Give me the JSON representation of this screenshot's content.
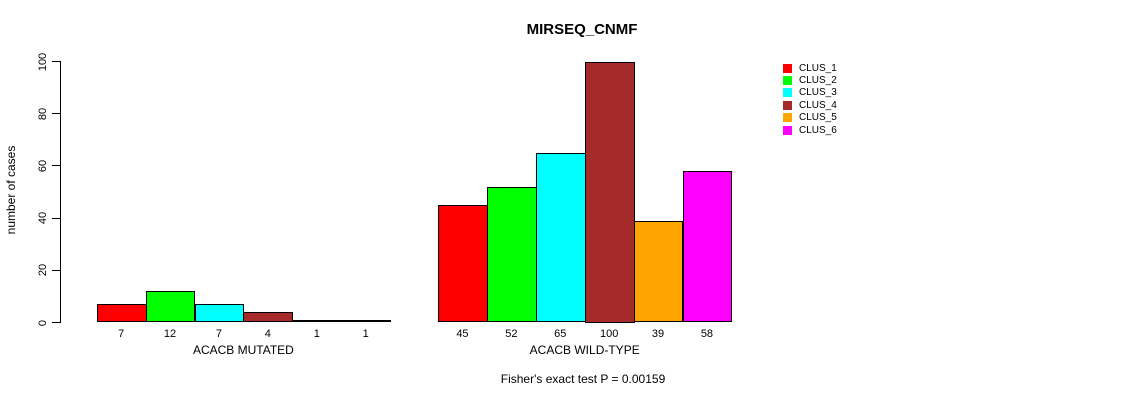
{
  "chart_data": {
    "type": "bar",
    "title": "MIRSEQ_CNMF",
    "ylabel": "number of cases",
    "ylim": [
      0,
      100
    ],
    "yticks": [
      0,
      20,
      40,
      60,
      80,
      100
    ],
    "grid": false,
    "legend_position": "right",
    "footnote": "Fisher's exact test P = 0.00159",
    "series_colors": [
      "#FF0000",
      "#00FF00",
      "#00FFFF",
      "#A52A2A",
      "#FFA500",
      "#FF00FF"
    ],
    "legend": [
      "CLUS_1",
      "CLUS_2",
      "CLUS_3",
      "CLUS_4",
      "CLUS_5",
      "CLUS_6"
    ],
    "groups": [
      {
        "label": "ACACB MUTATED",
        "values": [
          7,
          12,
          7,
          4,
          1,
          1
        ]
      },
      {
        "label": "ACACB WILD-TYPE",
        "values": [
          45,
          52,
          65,
          100,
          39,
          58
        ]
      }
    ]
  }
}
